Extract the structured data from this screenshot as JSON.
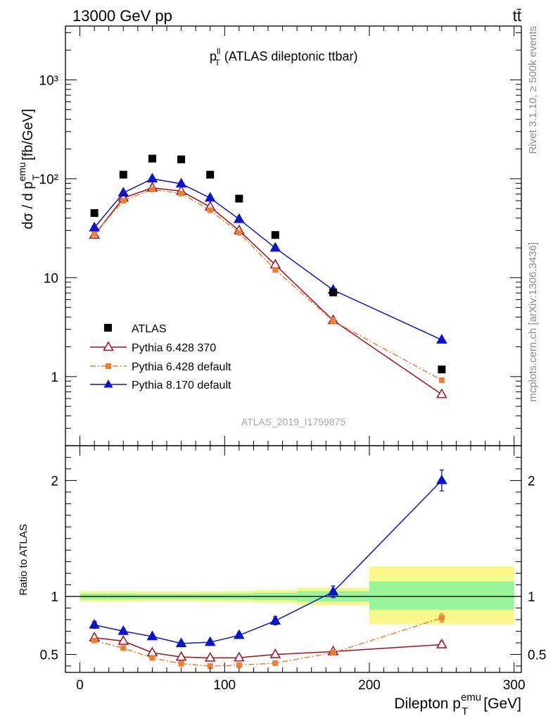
{
  "header": {
    "energy_label": "13000 GeV pp",
    "process_label": "tt̄"
  },
  "side_labels": {
    "rivet": "Rivet 3.1.10, ≥ 500k events",
    "mcplots": "mcplots.cern.ch [arXiv:1306.3436]"
  },
  "chart_data": [
    {
      "type": "line",
      "title_main": "p",
      "title_sup": "ll",
      "title_sub": "T",
      "title_rest": "(ATLAS dileptonic ttbar)",
      "ylabel_main": "dσ / d p",
      "ylabel_sup": "emu",
      "ylabel_sub": "T",
      "ylabel_rest": "[fb/GeV]",
      "yscale": "log",
      "ylim": [
        0.2,
        3500
      ],
      "xlim": [
        -10,
        305
      ],
      "ytick_labels": {
        "1000": "10³",
        "100": "10²",
        "10": "10",
        "1": "1"
      },
      "analysis_label": "ATLAS_2019_I1759875",
      "legend_position": "lower-left",
      "x": [
        10,
        30,
        50,
        70,
        90,
        110,
        135,
        175,
        250
      ],
      "data": {
        "name": "ATLAS",
        "color": "#000000",
        "marker": "filled-square",
        "values": [
          45,
          110,
          160,
          157,
          110,
          63,
          27,
          7.1,
          1.18
        ]
      },
      "series": [
        {
          "name": "Pythia 6.428 370",
          "color": "#a01020",
          "marker": "open-triangle",
          "line": "solid",
          "values": [
            27,
            64,
            81,
            75,
            52,
            30,
            13.5,
            3.7,
            0.66
          ]
        },
        {
          "name": "Pythia 6.428 default",
          "color": "#f08030",
          "marker": "filled-square-small",
          "line": "dashdot",
          "values": [
            27.5,
            60,
            78,
            71,
            48,
            28.5,
            12,
            3.65,
            0.92
          ]
        },
        {
          "name": "Pythia 8.170 default",
          "color": "#0a14d0",
          "marker": "filled-triangle",
          "line": "solid",
          "values": [
            32,
            72,
            100,
            89,
            64,
            39,
            20,
            7.5,
            2.35
          ]
        }
      ]
    },
    {
      "type": "line",
      "ylabel": "Ratio to ATLAS",
      "xlabel_main": "Dilepton p",
      "xlabel_sup": "emu",
      "xlabel_sub": "T",
      "xlabel_rest": "[GeV]",
      "ylim": [
        0.345,
        2.3
      ],
      "xlim": [
        -10,
        305
      ],
      "yticks": [
        0.5,
        1,
        2
      ],
      "ytick_labels": [
        "0.5",
        "1",
        "2"
      ],
      "xticks": [
        0,
        100,
        200,
        300
      ],
      "xtick_labels": [
        "0",
        "100",
        "200",
        "300"
      ],
      "bin_edges": [
        0,
        20,
        40,
        60,
        80,
        100,
        120,
        150,
        200,
        300
      ],
      "band_inner": [
        [
          0.975,
          1.025
        ],
        [
          0.975,
          1.025
        ],
        [
          0.978,
          1.022
        ],
        [
          0.978,
          1.022
        ],
        [
          0.976,
          1.024
        ],
        [
          0.974,
          1.026
        ],
        [
          0.968,
          1.032
        ],
        [
          0.955,
          1.045
        ],
        [
          0.885,
          1.13
        ]
      ],
      "band_outer": [
        [
          0.955,
          1.045
        ],
        [
          0.955,
          1.045
        ],
        [
          0.958,
          1.042
        ],
        [
          0.958,
          1.042
        ],
        [
          0.955,
          1.045
        ],
        [
          0.952,
          1.048
        ],
        [
          0.945,
          1.055
        ],
        [
          0.925,
          1.075
        ],
        [
          0.76,
          1.26
        ]
      ],
      "band_inner_color": "#99f599",
      "band_outer_color": "#f7f78a",
      "x": [
        10,
        30,
        50,
        70,
        90,
        110,
        135,
        175,
        250
      ],
      "series": [
        {
          "name": "Pythia 6.428 370",
          "color": "#a01020",
          "marker": "open-triangle",
          "line": "solid",
          "values": [
            0.645,
            0.615,
            0.515,
            0.478,
            0.47,
            0.472,
            0.5,
            0.525,
            0.585
          ],
          "errors": [
            0.018,
            0.014,
            0.012,
            0.012,
            0.012,
            0.013,
            0.015,
            0.012,
            0.025
          ]
        },
        {
          "name": "Pythia 6.428 default",
          "color": "#f08030",
          "marker": "filled-square-small",
          "line": "dashdot",
          "values": [
            0.62,
            0.555,
            0.47,
            0.42,
            0.4,
            0.408,
            0.425,
            0.515,
            0.815
          ],
          "errors": [
            0.018,
            0.012,
            0.01,
            0.01,
            0.01,
            0.01,
            0.011,
            0.012,
            0.035
          ]
        },
        {
          "name": "Pythia 8.170 default",
          "color": "#0a14d0",
          "marker": "filled-triangle",
          "line": "solid",
          "values": [
            0.755,
            0.7,
            0.655,
            0.595,
            0.605,
            0.665,
            0.79,
            1.04,
            2.0
          ],
          "errors": [
            0.03,
            0.02,
            0.015,
            0.015,
            0.018,
            0.025,
            0.035,
            0.05,
            0.09
          ]
        }
      ]
    }
  ]
}
